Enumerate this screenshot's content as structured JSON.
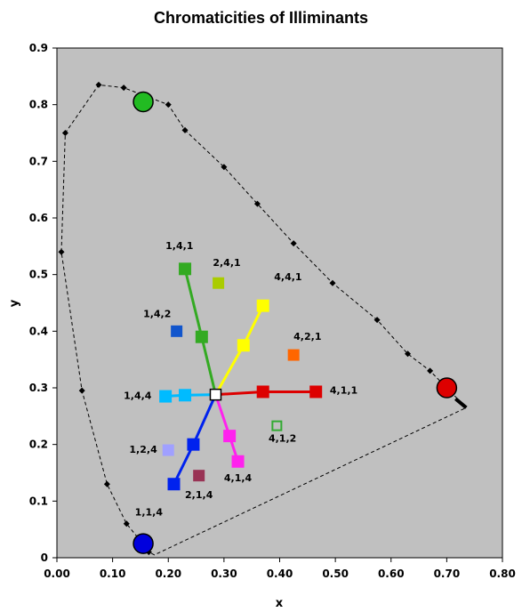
{
  "chart_data": {
    "type": "scatter",
    "title": "Chromaticities of Illiminants",
    "xlabel": "x",
    "ylabel": "y",
    "xlim": [
      0,
      0.8
    ],
    "ylim": [
      0,
      0.9
    ],
    "x_ticks": [
      "0.00",
      "0.10",
      "0.20",
      "0.30",
      "0.40",
      "0.50",
      "0.60",
      "0.70",
      "0.80"
    ],
    "y_ticks": [
      "0",
      "0.1",
      "0.2",
      "0.3",
      "0.4",
      "0.5",
      "0.6",
      "0.7",
      "0.8",
      "0.9"
    ],
    "plot_background": "#c0c0c0",
    "grid": false,
    "legend": "none",
    "spectral_locus": [
      [
        0.175,
        0.005
      ],
      [
        0.165,
        0.01
      ],
      [
        0.15,
        0.03
      ],
      [
        0.125,
        0.06
      ],
      [
        0.09,
        0.13
      ],
      [
        0.045,
        0.295
      ],
      [
        0.008,
        0.54
      ],
      [
        0.015,
        0.75
      ],
      [
        0.075,
        0.835
      ],
      [
        0.12,
        0.83
      ],
      [
        0.2,
        0.8
      ],
      [
        0.23,
        0.755
      ],
      [
        0.3,
        0.69
      ],
      [
        0.36,
        0.625
      ],
      [
        0.425,
        0.555
      ],
      [
        0.495,
        0.485
      ],
      [
        0.575,
        0.42
      ],
      [
        0.63,
        0.36
      ],
      [
        0.67,
        0.33
      ],
      [
        0.735,
        0.265
      ]
    ],
    "primaries": [
      {
        "color": "#dd0000",
        "x": 0.7,
        "y": 0.3
      },
      {
        "color": "#22bb22",
        "x": 0.155,
        "y": 0.805
      },
      {
        "color": "#0000dd",
        "x": 0.155,
        "y": 0.025
      }
    ],
    "white_point": {
      "x": 0.285,
      "y": 0.288
    },
    "rays": [
      {
        "color": "#dd0000",
        "points": [
          {
            "x": 0.37,
            "y": 0.293
          },
          {
            "x": 0.465,
            "y": 0.293,
            "label": "4,1,1"
          }
        ]
      },
      {
        "color": "#ffff00",
        "points": [
          {
            "x": 0.335,
            "y": 0.375
          },
          {
            "x": 0.37,
            "y": 0.445,
            "label": "4,4,1"
          }
        ]
      },
      {
        "color": "#33aa22",
        "points": [
          {
            "x": 0.26,
            "y": 0.39
          },
          {
            "x": 0.23,
            "y": 0.51,
            "label": "1,4,1"
          }
        ]
      },
      {
        "color": "#00bbff",
        "points": [
          {
            "x": 0.23,
            "y": 0.287
          },
          {
            "x": 0.195,
            "y": 0.285,
            "label": "1,4,4"
          }
        ]
      },
      {
        "color": "#0022ee",
        "points": [
          {
            "x": 0.245,
            "y": 0.2
          },
          {
            "x": 0.21,
            "y": 0.13,
            "label": "1,1,4"
          }
        ]
      },
      {
        "color": "#ff22ee",
        "points": [
          {
            "x": 0.31,
            "y": 0.215
          },
          {
            "x": 0.325,
            "y": 0.17,
            "label": "4,1,4"
          }
        ]
      }
    ],
    "extra_points": [
      {
        "label": "2,4,1",
        "x": 0.29,
        "y": 0.485,
        "color": "#aacc00"
      },
      {
        "label": "1,4,2",
        "x": 0.215,
        "y": 0.4,
        "color": "#1155cc"
      },
      {
        "label": "4,2,1",
        "x": 0.425,
        "y": 0.358,
        "color": "#ff6600"
      },
      {
        "label": "4,1,2",
        "x": 0.395,
        "y": 0.233,
        "color": "#33aa33",
        "hollow": true
      },
      {
        "label": "1,2,4",
        "x": 0.2,
        "y": 0.19,
        "color": "#a0a0ff"
      },
      {
        "label": "2,1,4",
        "x": 0.255,
        "y": 0.145,
        "color": "#993355"
      }
    ],
    "labels": [
      {
        "text": "1,4,1",
        "x": 0.195,
        "y": 0.545
      },
      {
        "text": "2,4,1",
        "x": 0.28,
        "y": 0.515
      },
      {
        "text": "4,4,1",
        "x": 0.39,
        "y": 0.49
      },
      {
        "text": "1,4,2",
        "x": 0.155,
        "y": 0.425
      },
      {
        "text": "4,2,1",
        "x": 0.425,
        "y": 0.385
      },
      {
        "text": "4,1,1",
        "x": 0.49,
        "y": 0.29
      },
      {
        "text": "1,4,4",
        "x": 0.12,
        "y": 0.28
      },
      {
        "text": "1,2,4",
        "x": 0.13,
        "y": 0.185
      },
      {
        "text": "4,1,2",
        "x": 0.38,
        "y": 0.205
      },
      {
        "text": "4,1,4",
        "x": 0.3,
        "y": 0.135
      },
      {
        "text": "2,1,4",
        "x": 0.23,
        "y": 0.105
      },
      {
        "text": "1,1,4",
        "x": 0.14,
        "y": 0.075
      }
    ]
  }
}
